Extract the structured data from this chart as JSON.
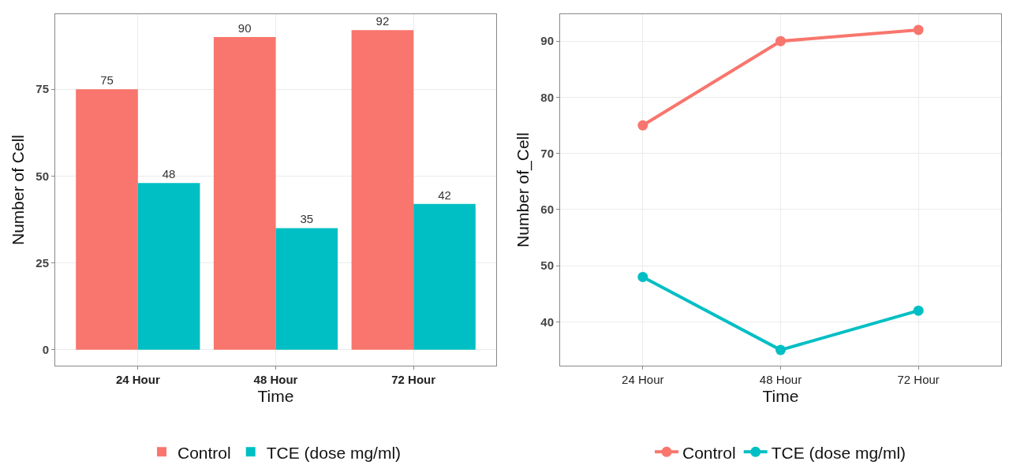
{
  "chart_data": [
    {
      "type": "bar",
      "xlabel": "Time",
      "ylabel": "Number of Cell",
      "categories": [
        "24 Hour",
        "48 Hour",
        "72 Hour"
      ],
      "series": [
        {
          "name": "Control",
          "color": "#f8766d",
          "values": [
            75,
            90,
            92
          ]
        },
        {
          "name": "TCE (dose mg/ml)",
          "color": "#00bfc4",
          "values": [
            48,
            35,
            42
          ]
        }
      ],
      "ylim": [
        -4.6,
        96.6
      ],
      "yticks": [
        0,
        25,
        50,
        75
      ],
      "grid": true,
      "legend": "bottom",
      "data_labels": true
    },
    {
      "type": "line",
      "xlabel": "Time",
      "ylabel": "Number of_Cell",
      "categories": [
        "24 Hour",
        "48 Hour",
        "72 Hour"
      ],
      "series": [
        {
          "name": "Control",
          "color": "#f8766d",
          "values": [
            75,
            90,
            92
          ]
        },
        {
          "name": "TCE (dose mg/ml)",
          "color": "#00bfc4",
          "values": [
            48,
            35,
            42
          ]
        }
      ],
      "ylim": [
        32.2,
        94.8
      ],
      "yticks": [
        40,
        50,
        60,
        70,
        80,
        90
      ],
      "grid": true,
      "legend": "bottom",
      "marker": "circle",
      "line_style": "solid"
    }
  ]
}
